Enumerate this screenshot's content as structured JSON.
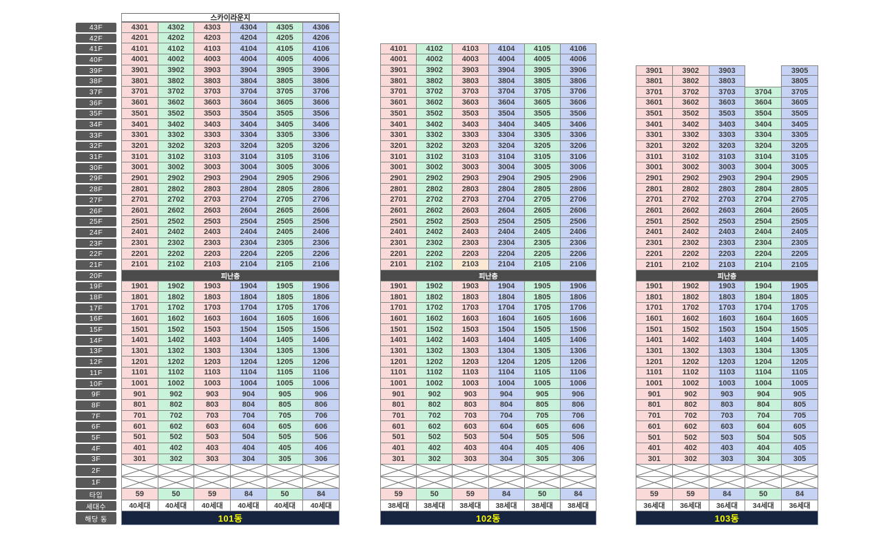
{
  "texts": {
    "sky_lounge": "스카이라운지",
    "refuge": "피난층",
    "type_label": "타입",
    "households_label": "세대수",
    "building_label": "해당 동"
  },
  "colors": {
    "pink": "#f9dad8",
    "green": "#c9f2da",
    "blue": "#c6d2f4",
    "peach": "#fbe9d5",
    "label_bg": "#595959",
    "refuge_bg": "#4b4b4b",
    "footer_bg": "#16243f",
    "footer_text": "#f6f900",
    "grid_border": "#848484"
  },
  "floor_labels": [
    "43F",
    "42F",
    "41F",
    "40F",
    "39F",
    "38F",
    "37F",
    "36F",
    "35F",
    "34F",
    "33F",
    "32F",
    "31F",
    "30F",
    "29F",
    "28F",
    "27F",
    "26F",
    "25F",
    "24F",
    "23F",
    "22F",
    "21F",
    "20F",
    "19F",
    "18F",
    "17F",
    "16F",
    "15F",
    "14F",
    "13F",
    "12F",
    "11F",
    "10F",
    "9F",
    "8F",
    "7F",
    "6F",
    "5F",
    "4F",
    "3F",
    "2F",
    "1F"
  ],
  "buildings": [
    {
      "name": "101동",
      "top_floor": 43,
      "has_sky_lounge": true,
      "refuge_floor": 20,
      "column_colors": [
        "pink",
        "green",
        "pink",
        "blue",
        "green",
        "blue"
      ],
      "types": [
        "59",
        "50",
        "59",
        "84",
        "50",
        "84"
      ],
      "households": [
        "40세대",
        "40세대",
        "40세대",
        "40세대",
        "40세대",
        "40세대"
      ],
      "highlight_units": [],
      "unit_rows": [
        [
          4301,
          4302,
          4303,
          4304,
          4305,
          4306
        ],
        [
          4201,
          4202,
          4203,
          4204,
          4205,
          4206
        ],
        [
          4101,
          4102,
          4103,
          4104,
          4105,
          4106
        ],
        [
          4001,
          4002,
          4003,
          4004,
          4005,
          4006
        ],
        [
          3901,
          3902,
          3903,
          3904,
          3905,
          3906
        ],
        [
          3801,
          3802,
          3803,
          3804,
          3805,
          3806
        ],
        [
          3701,
          3702,
          3703,
          3704,
          3705,
          3706
        ],
        [
          3601,
          3602,
          3603,
          3604,
          3605,
          3606
        ],
        [
          3501,
          3502,
          3503,
          3504,
          3505,
          3506
        ],
        [
          3401,
          3402,
          3403,
          3404,
          3405,
          3406
        ],
        [
          3301,
          3302,
          3303,
          3304,
          3305,
          3306
        ],
        [
          3201,
          3202,
          3203,
          3204,
          3205,
          3206
        ],
        [
          3101,
          3102,
          3103,
          3104,
          3105,
          3106
        ],
        [
          3001,
          3002,
          3003,
          3004,
          3005,
          3006
        ],
        [
          2901,
          2902,
          2903,
          2904,
          2905,
          2906
        ],
        [
          2801,
          2802,
          2803,
          2804,
          2805,
          2806
        ],
        [
          2701,
          2702,
          2703,
          2704,
          2705,
          2706
        ],
        [
          2601,
          2602,
          2603,
          2604,
          2605,
          2606
        ],
        [
          2501,
          2502,
          2503,
          2504,
          2505,
          2506
        ],
        [
          2401,
          2402,
          2403,
          2404,
          2405,
          2406
        ],
        [
          2301,
          2302,
          2303,
          2304,
          2305,
          2306
        ],
        [
          2201,
          2202,
          2203,
          2204,
          2205,
          2206
        ],
        [
          2101,
          2102,
          2103,
          2104,
          2105,
          2106
        ],
        [
          1901,
          1902,
          1903,
          1904,
          1905,
          1906
        ],
        [
          1801,
          1802,
          1803,
          1804,
          1805,
          1806
        ],
        [
          1701,
          1702,
          1703,
          1704,
          1705,
          1706
        ],
        [
          1601,
          1602,
          1603,
          1604,
          1605,
          1606
        ],
        [
          1501,
          1502,
          1503,
          1504,
          1505,
          1506
        ],
        [
          1401,
          1402,
          1403,
          1404,
          1405,
          1406
        ],
        [
          1301,
          1302,
          1303,
          1304,
          1305,
          1306
        ],
        [
          1201,
          1202,
          1203,
          1204,
          1205,
          1206
        ],
        [
          1101,
          1102,
          1103,
          1104,
          1105,
          1106
        ],
        [
          1001,
          1002,
          1003,
          1004,
          1005,
          1006
        ],
        [
          901,
          902,
          903,
          904,
          905,
          906
        ],
        [
          801,
          802,
          803,
          804,
          805,
          806
        ],
        [
          701,
          702,
          703,
          704,
          705,
          706
        ],
        [
          601,
          602,
          603,
          604,
          605,
          606
        ],
        [
          501,
          502,
          503,
          504,
          505,
          506
        ],
        [
          401,
          402,
          403,
          404,
          405,
          406
        ],
        [
          301,
          302,
          303,
          304,
          305,
          306
        ]
      ]
    },
    {
      "name": "102동",
      "top_floor": 41,
      "has_sky_lounge": false,
      "refuge_floor": 20,
      "column_colors": [
        "pink",
        "green",
        "pink",
        "blue",
        "green",
        "blue"
      ],
      "types": [
        "59",
        "50",
        "59",
        "84",
        "50",
        "84"
      ],
      "households": [
        "38세대",
        "38세대",
        "38세대",
        "38세대",
        "38세대",
        "38세대"
      ],
      "highlight_units": [
        2103
      ],
      "unit_rows": [
        [
          4101,
          4102,
          4103,
          4104,
          4105,
          4106
        ],
        [
          4001,
          4002,
          4003,
          4004,
          4005,
          4006
        ],
        [
          3901,
          3902,
          3903,
          3904,
          3905,
          3906
        ],
        [
          3801,
          3802,
          3803,
          3804,
          3805,
          3806
        ],
        [
          3701,
          3702,
          3703,
          3704,
          3705,
          3706
        ],
        [
          3601,
          3602,
          3603,
          3604,
          3605,
          3606
        ],
        [
          3501,
          3502,
          3503,
          3504,
          3505,
          3506
        ],
        [
          3401,
          3402,
          3403,
          3404,
          3405,
          3406
        ],
        [
          3301,
          3302,
          3303,
          3304,
          3305,
          3306
        ],
        [
          3201,
          3202,
          3203,
          3204,
          3205,
          3206
        ],
        [
          3101,
          3102,
          3103,
          3104,
          3105,
          3106
        ],
        [
          3001,
          3002,
          3003,
          3004,
          3005,
          3006
        ],
        [
          2901,
          2902,
          2903,
          2904,
          2905,
          2906
        ],
        [
          2801,
          2802,
          2803,
          2804,
          2805,
          2806
        ],
        [
          2701,
          2702,
          2703,
          2704,
          2705,
          2706
        ],
        [
          2601,
          2602,
          2603,
          2604,
          2605,
          2606
        ],
        [
          2501,
          2502,
          2503,
          2504,
          2505,
          2506
        ],
        [
          2401,
          2402,
          2403,
          2404,
          2405,
          2406
        ],
        [
          2301,
          2302,
          2303,
          2304,
          2305,
          2306
        ],
        [
          2201,
          2202,
          2203,
          2204,
          2205,
          2206
        ],
        [
          2101,
          2102,
          2103,
          2104,
          2105,
          2106
        ],
        [
          1901,
          1902,
          1903,
          1904,
          1905,
          1906
        ],
        [
          1801,
          1802,
          1803,
          1804,
          1805,
          1806
        ],
        [
          1701,
          1702,
          1703,
          1704,
          1705,
          1706
        ],
        [
          1601,
          1602,
          1603,
          1604,
          1605,
          1606
        ],
        [
          1501,
          1502,
          1503,
          1504,
          1505,
          1506
        ],
        [
          1401,
          1402,
          1403,
          1404,
          1405,
          1406
        ],
        [
          1301,
          1302,
          1303,
          1304,
          1305,
          1306
        ],
        [
          1201,
          1202,
          1203,
          1204,
          1205,
          1206
        ],
        [
          1101,
          1102,
          1103,
          1104,
          1105,
          1106
        ],
        [
          1001,
          1002,
          1003,
          1004,
          1005,
          1006
        ],
        [
          901,
          902,
          903,
          904,
          905,
          906
        ],
        [
          801,
          802,
          803,
          804,
          805,
          806
        ],
        [
          701,
          702,
          703,
          704,
          705,
          706
        ],
        [
          601,
          602,
          603,
          604,
          605,
          606
        ],
        [
          501,
          502,
          503,
          504,
          505,
          506
        ],
        [
          401,
          402,
          403,
          404,
          405,
          406
        ],
        [
          301,
          302,
          303,
          304,
          305,
          306
        ]
      ]
    },
    {
      "name": "103동",
      "top_floor": 39,
      "has_sky_lounge": false,
      "refuge_floor": 20,
      "column_colors": [
        "pink",
        "pink",
        "blue",
        "green",
        "blue"
      ],
      "types": [
        "59",
        "59",
        "84",
        "50",
        "84"
      ],
      "households": [
        "36세대",
        "36세대",
        "36세대",
        "34세대",
        "36세대"
      ],
      "highlight_units": [],
      "unit_rows": [
        [
          3901,
          3902,
          3903,
          null,
          3905
        ],
        [
          3801,
          3802,
          3803,
          null,
          3805
        ],
        [
          3701,
          3702,
          3703,
          3704,
          3705
        ],
        [
          3601,
          3602,
          3603,
          3604,
          3605
        ],
        [
          3501,
          3502,
          3503,
          3504,
          3505
        ],
        [
          3401,
          3402,
          3403,
          3404,
          3405
        ],
        [
          3301,
          3302,
          3303,
          3304,
          3305
        ],
        [
          3201,
          3202,
          3203,
          3204,
          3205
        ],
        [
          3101,
          3102,
          3103,
          3104,
          3105
        ],
        [
          3001,
          3002,
          3003,
          3004,
          3005
        ],
        [
          2901,
          2902,
          2903,
          2904,
          2905
        ],
        [
          2801,
          2802,
          2803,
          2804,
          2805
        ],
        [
          2701,
          2702,
          2703,
          2704,
          2705
        ],
        [
          2601,
          2602,
          2603,
          2604,
          2605
        ],
        [
          2501,
          2502,
          2503,
          2504,
          2505
        ],
        [
          2401,
          2402,
          2403,
          2404,
          2405
        ],
        [
          2301,
          2302,
          2303,
          2304,
          2305
        ],
        [
          2201,
          2202,
          2203,
          2204,
          2205
        ],
        [
          2101,
          2102,
          2103,
          2104,
          2105
        ],
        [
          1901,
          1902,
          1903,
          1904,
          1905
        ],
        [
          1801,
          1802,
          1803,
          1804,
          1805
        ],
        [
          1701,
          1702,
          1703,
          1704,
          1705
        ],
        [
          1601,
          1602,
          1603,
          1604,
          1605
        ],
        [
          1501,
          1502,
          1503,
          1504,
          1505
        ],
        [
          1401,
          1402,
          1403,
          1404,
          1405
        ],
        [
          1301,
          1302,
          1303,
          1304,
          1305
        ],
        [
          1201,
          1202,
          1203,
          1204,
          1205
        ],
        [
          1101,
          1102,
          1103,
          1104,
          1105
        ],
        [
          1001,
          1002,
          1003,
          1004,
          1005
        ],
        [
          901,
          902,
          903,
          904,
          905
        ],
        [
          801,
          802,
          803,
          804,
          805
        ],
        [
          701,
          702,
          703,
          704,
          705
        ],
        [
          601,
          602,
          603,
          604,
          605
        ],
        [
          501,
          502,
          503,
          504,
          505
        ],
        [
          401,
          402,
          403,
          404,
          405
        ],
        [
          301,
          302,
          303,
          304,
          305
        ]
      ]
    }
  ]
}
